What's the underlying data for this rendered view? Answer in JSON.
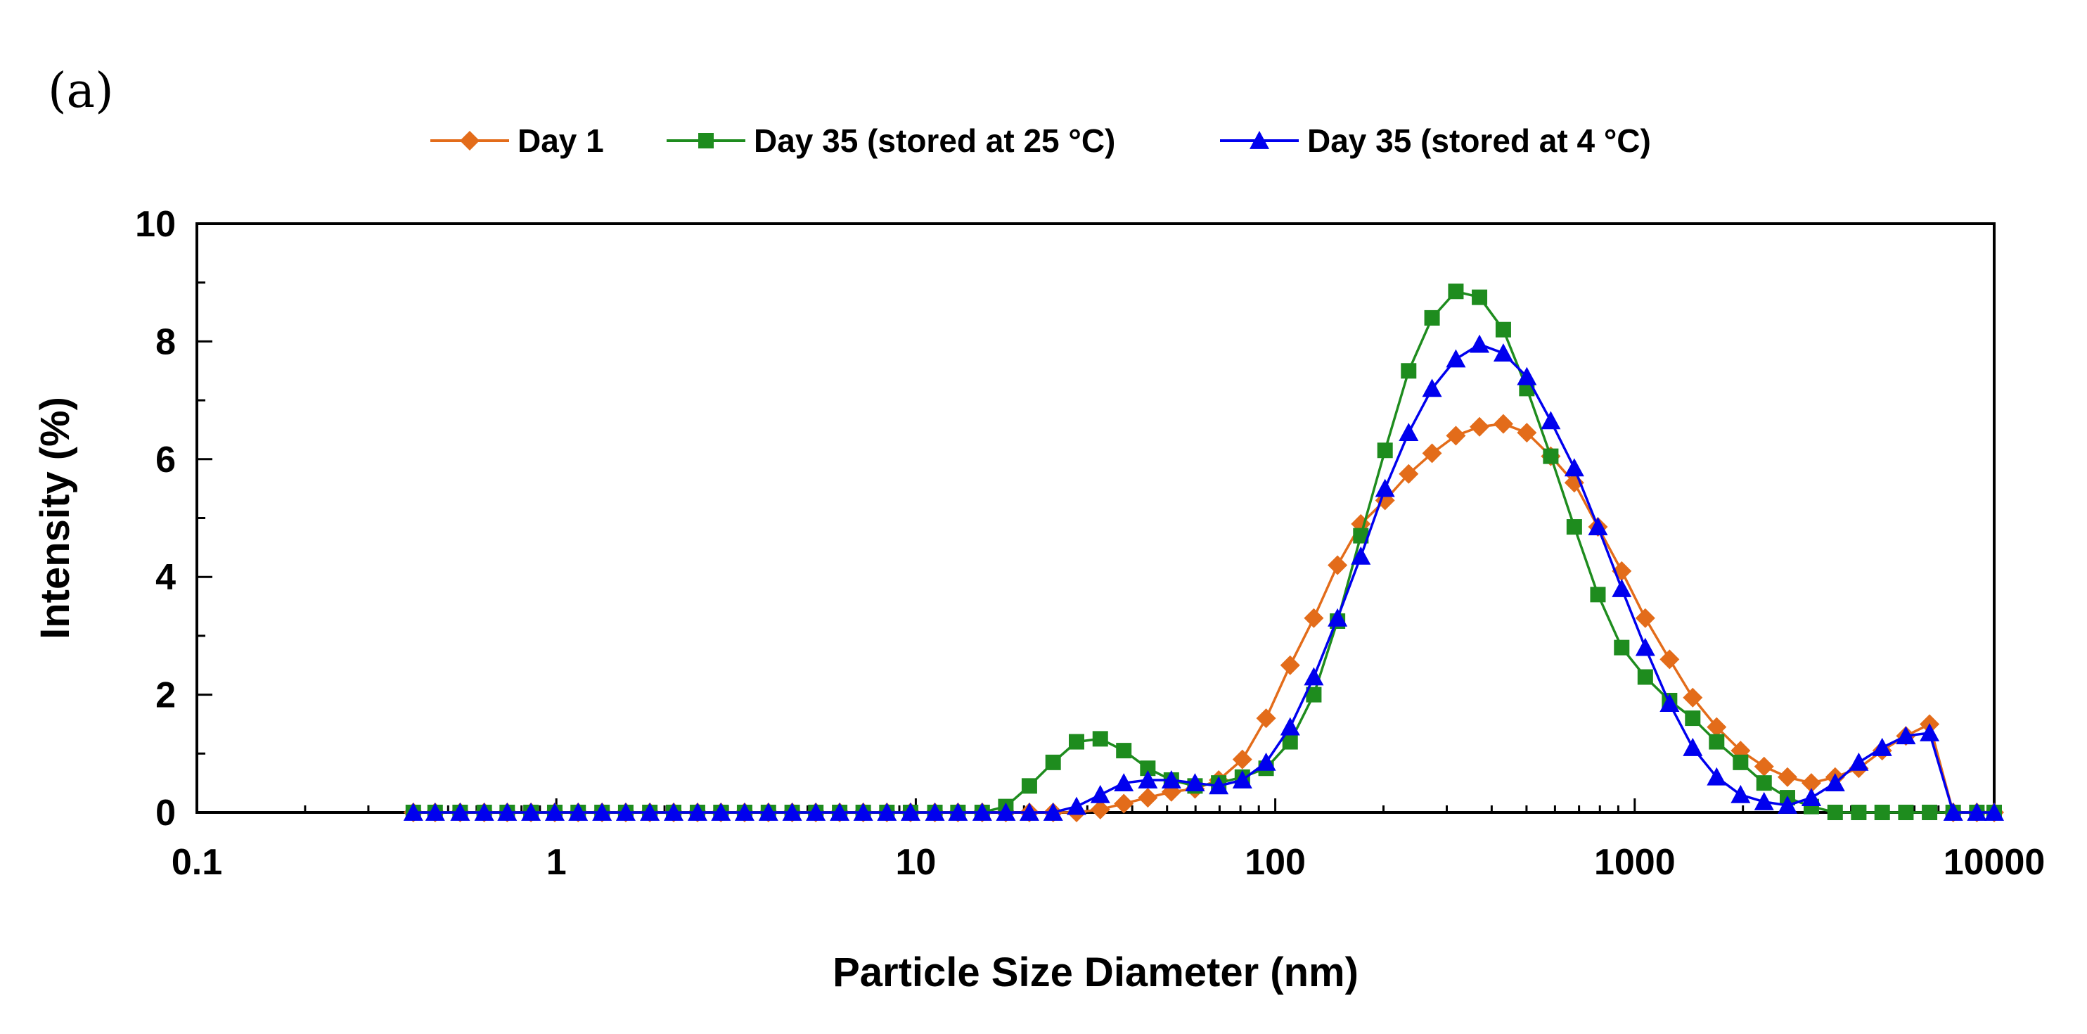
{
  "figure": {
    "panel_label": "(a)"
  },
  "chart_data": {
    "type": "line",
    "title": "",
    "xlabel": "Particle Size Diameter (nm)",
    "ylabel": "Intensity (%)",
    "xscale": "log",
    "xlim": [
      0.1,
      10000
    ],
    "ylim": [
      0,
      10
    ],
    "x_ticks": [
      0.1,
      1,
      10,
      100,
      1000,
      10000
    ],
    "x_tick_labels": [
      "0.1",
      "1",
      "10",
      "100",
      "1000",
      "10000"
    ],
    "y_ticks": [
      0,
      2,
      4,
      6,
      8,
      10
    ],
    "y_tick_labels": [
      "0",
      "2",
      "4",
      "6",
      "8",
      "10"
    ],
    "grid": false,
    "legend_position": "top",
    "x": [
      0.4,
      0.46,
      0.54,
      0.63,
      0.73,
      0.85,
      0.99,
      1.15,
      1.34,
      1.56,
      1.82,
      2.12,
      2.47,
      2.87,
      3.34,
      3.89,
      4.53,
      5.27,
      6.14,
      7.14,
      8.31,
      9.67,
      11.3,
      13.1,
      15.3,
      17.8,
      20.7,
      24.1,
      28.0,
      32.6,
      37.9,
      44.2,
      51.4,
      59.8,
      69.6,
      81.0,
      94.3,
      110,
      128,
      149,
      173,
      202,
      235,
      273,
      318,
      370,
      431,
      501,
      584,
      679,
      790,
      920,
      1070,
      1250,
      1450,
      1690,
      1970,
      2290,
      2660,
      3100,
      3610,
      4200,
      4880,
      5680,
      6610,
      7690,
      8950,
      10000
    ],
    "series": [
      {
        "name": "Day 1",
        "color": "#E36C1A",
        "marker": "diamond",
        "values": [
          0,
          0,
          0,
          0,
          0,
          0,
          0,
          0,
          0,
          0,
          0,
          0,
          0,
          0,
          0,
          0,
          0,
          0,
          0,
          0,
          0,
          0,
          0,
          0,
          0,
          0,
          0,
          0,
          0,
          0.05,
          0.15,
          0.25,
          0.35,
          0.4,
          0.55,
          0.9,
          1.6,
          2.5,
          3.3,
          4.2,
          4.9,
          5.3,
          5.75,
          6.1,
          6.4,
          6.55,
          6.6,
          6.45,
          6.05,
          5.6,
          4.85,
          4.1,
          3.3,
          2.6,
          1.95,
          1.45,
          1.05,
          0.78,
          0.6,
          0.5,
          0.6,
          0.75,
          1.05,
          1.3,
          1.5,
          0,
          0,
          0
        ]
      },
      {
        "name": "Day 35 (stored at 25 °C)",
        "color": "#1E8C1E",
        "marker": "square",
        "values": [
          0,
          0,
          0,
          0,
          0,
          0,
          0,
          0,
          0,
          0,
          0,
          0,
          0,
          0,
          0,
          0,
          0,
          0,
          0,
          0,
          0,
          0,
          0,
          0,
          0,
          0.1,
          0.45,
          0.85,
          1.2,
          1.25,
          1.05,
          0.75,
          0.55,
          0.45,
          0.5,
          0.6,
          0.75,
          1.2,
          2.0,
          3.25,
          4.7,
          6.15,
          7.5,
          8.4,
          8.85,
          8.75,
          8.2,
          7.2,
          6.05,
          4.85,
          3.7,
          2.8,
          2.3,
          1.9,
          1.6,
          1.2,
          0.85,
          0.5,
          0.25,
          0.1,
          0,
          0,
          0,
          0,
          0,
          0,
          0,
          0
        ]
      },
      {
        "name": "Day 35 (stored at 4 °C)",
        "color": "#0000EE",
        "marker": "triangle",
        "values": [
          0,
          0,
          0,
          0,
          0,
          0,
          0,
          0,
          0,
          0,
          0,
          0,
          0,
          0,
          0,
          0,
          0,
          0,
          0,
          0,
          0,
          0,
          0,
          0,
          0,
          0,
          0,
          0,
          0.1,
          0.3,
          0.5,
          0.55,
          0.55,
          0.5,
          0.45,
          0.55,
          0.85,
          1.45,
          2.3,
          3.3,
          4.35,
          5.5,
          6.45,
          7.2,
          7.7,
          7.95,
          7.8,
          7.4,
          6.65,
          5.85,
          4.85,
          3.8,
          2.8,
          1.85,
          1.1,
          0.6,
          0.3,
          0.18,
          0.12,
          0.25,
          0.5,
          0.85,
          1.1,
          1.3,
          1.35,
          0,
          0,
          0
        ]
      }
    ]
  }
}
